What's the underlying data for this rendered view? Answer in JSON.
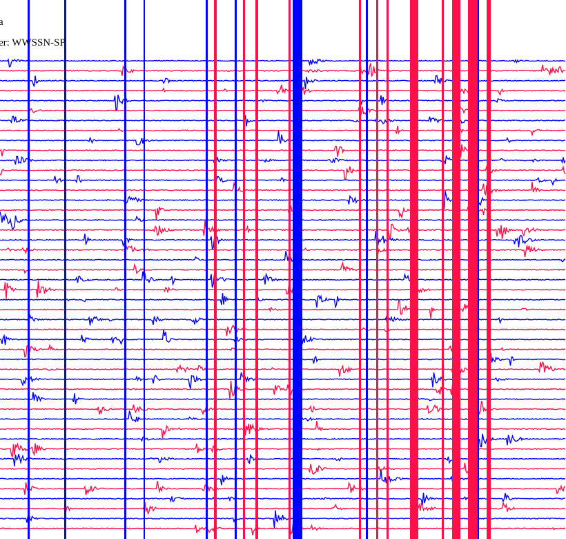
{
  "header": {
    "line1": "a",
    "line2": "er: WWSSN-SP"
  }
}
